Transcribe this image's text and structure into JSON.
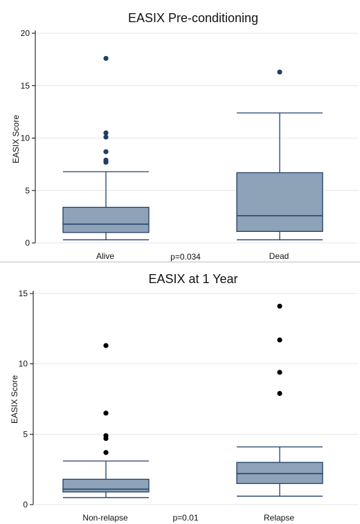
{
  "chart_data": [
    {
      "type": "box",
      "title": "EASIX Pre-conditioning",
      "ylabel": "EASIX Score",
      "xlabel": "",
      "ylim": [
        0,
        20
      ],
      "yticks": [
        0,
        5,
        10,
        15,
        20
      ],
      "annotation": "p=0.034",
      "box_color": "#8ea2b8",
      "outlier_color": "#1f3e66",
      "categories": [
        "Alive",
        "Dead"
      ],
      "boxes": [
        {
          "name": "Alive",
          "whisker_low": 0.3,
          "q1": 1.0,
          "median": 1.8,
          "q3": 3.4,
          "whisker_high": 6.8,
          "outliers": [
            7.7,
            7.9,
            8.7,
            10.1,
            10.5,
            17.6
          ]
        },
        {
          "name": "Dead",
          "whisker_low": 0.3,
          "q1": 1.1,
          "median": 2.6,
          "q3": 6.7,
          "whisker_high": 12.4,
          "outliers": [
            16.3
          ]
        }
      ]
    },
    {
      "type": "box",
      "title": "EASIX at 1 Year",
      "ylabel": "EASIX Score",
      "xlabel": "",
      "ylim": [
        0,
        15
      ],
      "yticks": [
        0,
        5,
        10,
        15
      ],
      "annotation": "p=0.01",
      "box_color": "#8ea2b8",
      "outlier_color": "#000000",
      "categories": [
        "Non-relapse",
        "Relapse"
      ],
      "boxes": [
        {
          "name": "Non-relapse",
          "whisker_low": 0.5,
          "q1": 0.9,
          "median": 1.1,
          "q3": 1.8,
          "whisker_high": 3.1,
          "outliers": [
            3.7,
            4.7,
            4.9,
            6.5,
            11.3
          ]
        },
        {
          "name": "Relapse",
          "whisker_low": 0.6,
          "q1": 1.5,
          "median": 2.2,
          "q3": 3.0,
          "whisker_high": 4.1,
          "outliers": [
            7.9,
            9.4,
            11.7,
            14.1
          ]
        }
      ]
    }
  ]
}
